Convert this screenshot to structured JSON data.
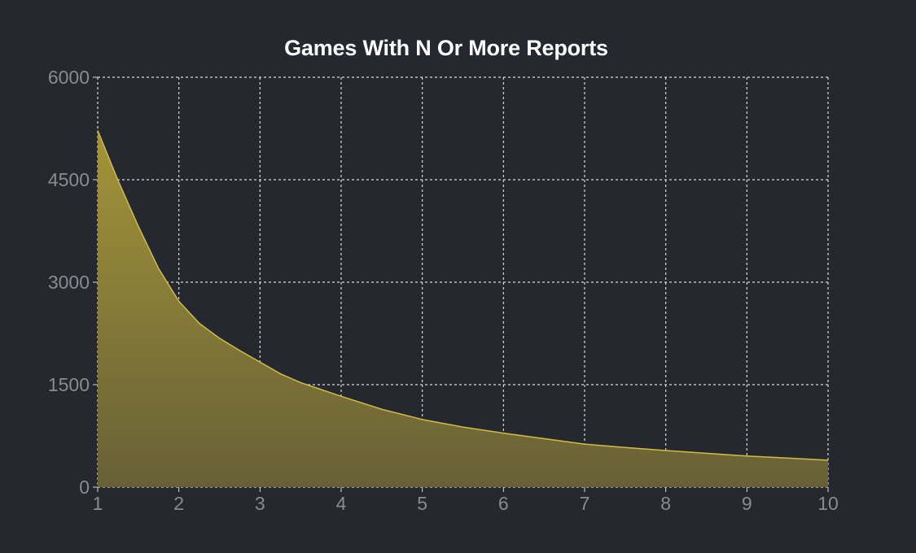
{
  "chart_data": {
    "type": "area",
    "title": "Games With N Or More Reports",
    "xlabel": "",
    "ylabel": "",
    "x": [
      1,
      1.25,
      1.5,
      1.75,
      2,
      2.25,
      2.5,
      2.75,
      3,
      3.25,
      3.5,
      3.75,
      4,
      4.5,
      5,
      5.5,
      6,
      6.5,
      7,
      7.5,
      8,
      8.5,
      9,
      9.5,
      10
    ],
    "series": [
      {
        "values": [
          5220,
          4490,
          3820,
          3200,
          2720,
          2400,
          2180,
          2000,
          1830,
          1660,
          1530,
          1430,
          1330,
          1140,
          990,
          880,
          790,
          710,
          630,
          580,
          535,
          495,
          455,
          425,
          395
        ],
        "color": "#c4b037"
      }
    ],
    "xlim": [
      1,
      10
    ],
    "ylim": [
      0,
      6000
    ],
    "xticks": [
      "1",
      "2",
      "3",
      "4",
      "5",
      "6",
      "7",
      "8",
      "9",
      "10"
    ],
    "yticks": [
      "0",
      "1500",
      "3000",
      "4500",
      "6000"
    ],
    "grid": true,
    "legend": "none",
    "colors": {
      "background": "#262830",
      "fill_top": "#a39438",
      "fill_bottom": "#676037",
      "line": "#d1bd3f",
      "grid": "#d8d8d8",
      "tick_label": "#8a8b8e",
      "title": "#ffffff"
    }
  }
}
